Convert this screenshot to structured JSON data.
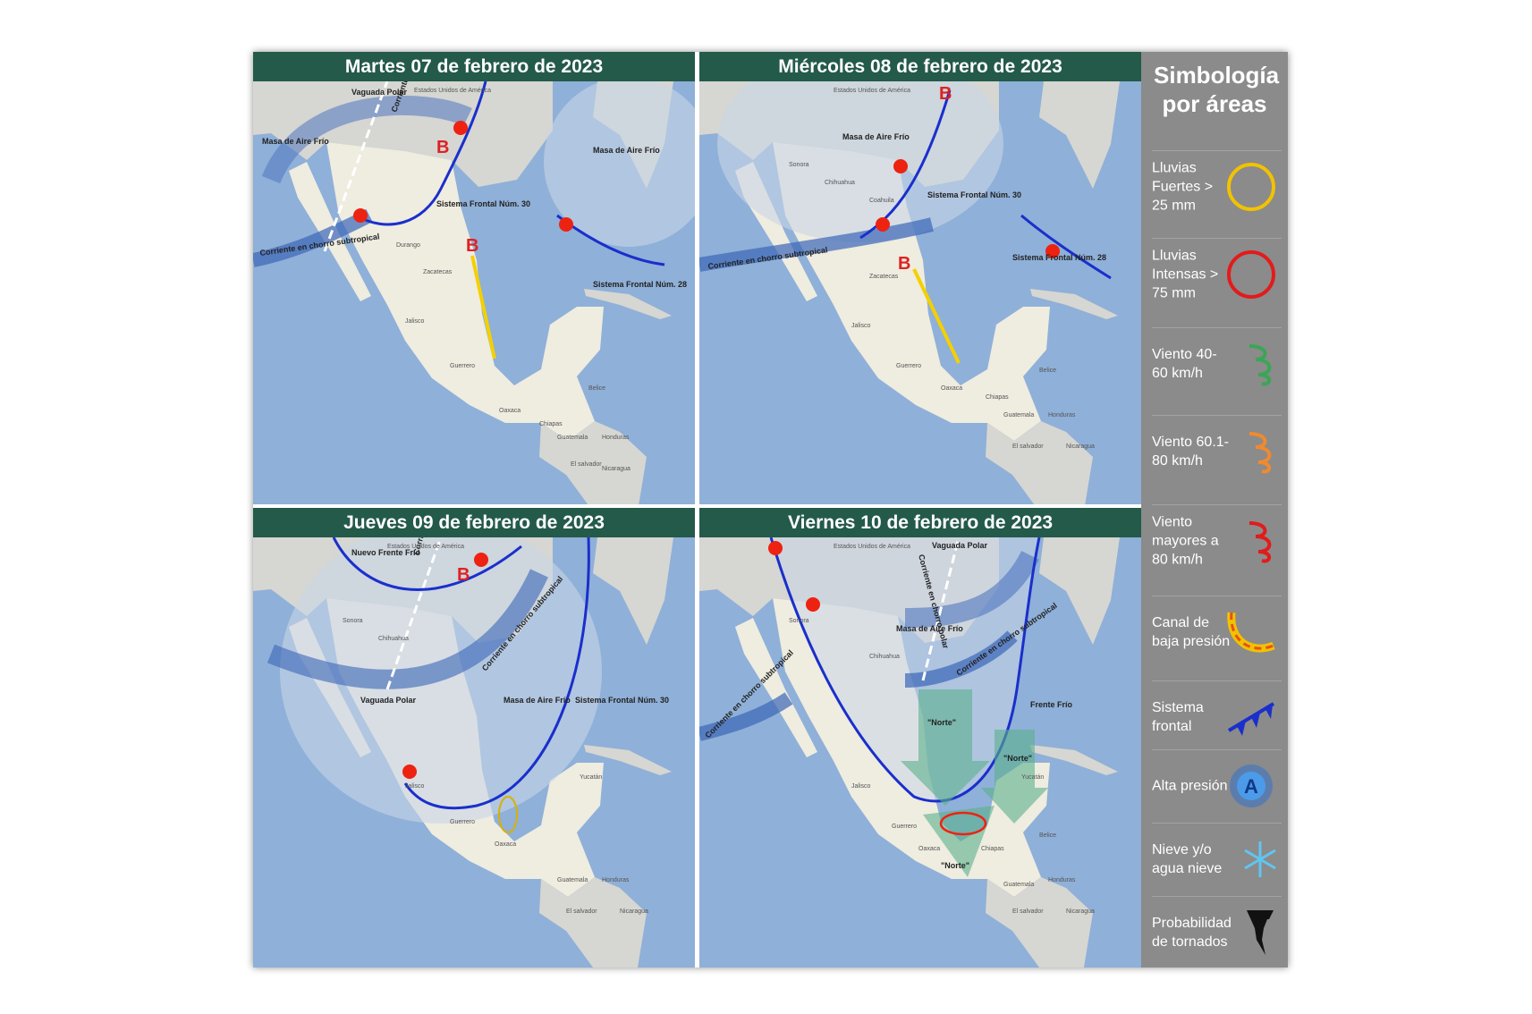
{
  "panels": [
    {
      "title": "Martes 07 de febrero de 2023",
      "labels": [
        "Vaguada Polar",
        "Masa de Aire Frío",
        "Masa de Aire Frío",
        "Corriente en chorro polar",
        "B",
        "B",
        "Sistema Frontal Núm. 30",
        "Corriente en chorro subtropical",
        "Sistema Frontal Núm. 28",
        "Durango",
        "Zacatecas",
        "Jalisco",
        "Guerrero",
        "Oaxaca",
        "Chiapas",
        "Guatemala",
        "Honduras",
        "Belice",
        "Nicaragua",
        "El salvador",
        "Estados Unidos de América"
      ]
    },
    {
      "title": "Miércoles 08 de febrero de 2023",
      "labels": [
        "Masa de Aire Frío",
        "B",
        "B",
        "Sistema Frontal Núm. 30",
        "Corriente en chorro subtropical",
        "Sistema Frontal Núm. 28",
        "Sonora",
        "Chihuahua",
        "Coahuila",
        "Zacatecas",
        "Jalisco",
        "Guerrero",
        "Oaxaca",
        "Chiapas",
        "Guatemala",
        "Honduras",
        "Belice",
        "Nicaragua",
        "El salvador",
        "Estados Unidos de América"
      ]
    },
    {
      "title": "Jueves 09 de febrero de 2023",
      "labels": [
        "Nuevo Frente Frío",
        "Corriente en chorro polar",
        "B",
        "Corriente en chorro subtropical",
        "Vaguada Polar",
        "Masa de Aire Frío",
        "Sistema Frontal Núm. 30",
        "Sonora",
        "Chihuahua",
        "Jalisco",
        "Guerrero",
        "Oaxaca",
        "Yucatán",
        "Guatemala",
        "Honduras",
        "Nicaragua",
        "El salvador",
        "Estados Unidos de América"
      ]
    },
    {
      "title": "Viernes 10 de febrero de 2023",
      "labels": [
        "Vaguada Polar",
        "Corriente en chorro polar",
        "Masa de Aire Frío",
        "Corriente en chorro subtropical",
        "Corriente en chorro subtropical",
        "Frente Frío",
        "\"Norte\"",
        "\"Norte\"",
        "\"Norte\"",
        "Sonora",
        "Chihuahua",
        "Jalisco",
        "Guerrero",
        "Oaxaca",
        "Chiapas",
        "Yucatán",
        "Guatemala",
        "Honduras",
        "Nicaragua",
        "Belice",
        "El salvador",
        "Estados Unidos de América"
      ]
    }
  ],
  "legend": {
    "title": "Simbología por áreas",
    "items": [
      {
        "text": "Lluvias Fuertes > 25 mm"
      },
      {
        "text": "Lluvias Intensas > 75 mm"
      },
      {
        "text": "Viento 40-60 km/h"
      },
      {
        "text": "Viento 60.1-80 km/h"
      },
      {
        "text": "Viento mayores a 80 km/h"
      },
      {
        "text": "Canal de baja presión"
      },
      {
        "text": "Sistema frontal"
      },
      {
        "text": "Alta presión",
        "icon_label": "A"
      },
      {
        "text": "Nieve y/o agua nieve"
      },
      {
        "text": "Probabilidad de tornados"
      }
    ]
  }
}
